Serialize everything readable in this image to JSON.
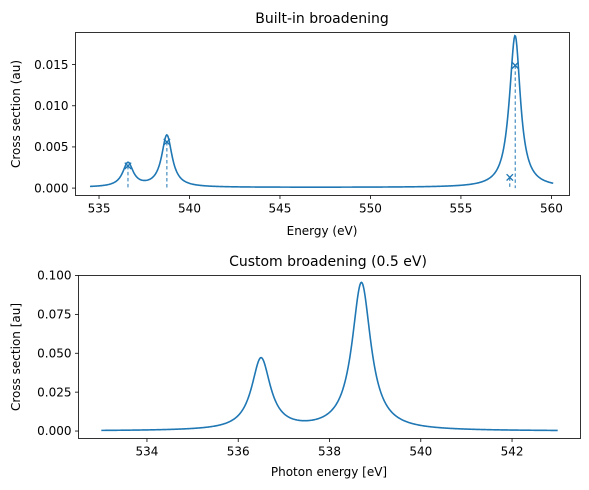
{
  "chart_data": [
    {
      "type": "line",
      "title": "Built-in broadening",
      "xlabel": "Energy (eV)",
      "ylabel": "Cross section (au)",
      "xlim": [
        533.7,
        561.0
      ],
      "ylim": [
        -0.0009,
        0.0189
      ],
      "x_ticks": [
        535,
        540,
        545,
        550,
        555,
        560
      ],
      "x_tick_labels": [
        "535",
        "540",
        "545",
        "550",
        "555",
        "560"
      ],
      "y_ticks": [
        0.0,
        0.005,
        0.01,
        0.015
      ],
      "y_tick_labels": [
        "0.000",
        "0.005",
        "0.010",
        "0.015"
      ],
      "grid": false,
      "series": [
        {
          "style": "line",
          "color": "#1f77b4",
          "curve": {
            "x_range": [
              534.5,
              560.1
            ],
            "baseline": 8e-05,
            "peaks": [
              {
                "center": 536.6,
                "height": 0.0029,
                "hwhm": 0.35
              },
              {
                "center": 538.75,
                "height": 0.0063,
                "hwhm": 0.35
              },
              {
                "center": 557.7,
                "height": 0.0013,
                "hwhm": 0.35
              },
              {
                "center": 558.0,
                "height": 0.0177,
                "hwhm": 0.35
              }
            ]
          }
        },
        {
          "style": "sticks",
          "marker": "x",
          "color": "#1f77b4",
          "x": [
            536.6,
            538.75,
            557.7,
            558.0
          ],
          "y": [
            0.0027,
            0.0056,
            0.0013,
            0.0149
          ]
        }
      ]
    },
    {
      "type": "line",
      "title": "Custom broadening (0.5 eV)",
      "xlabel": "Photon energy [eV]",
      "ylabel": "Cross section [au]",
      "xlim": [
        532.5,
        543.5
      ],
      "ylim": [
        -0.0048,
        0.1
      ],
      "x_ticks": [
        534,
        536,
        538,
        540,
        542
      ],
      "x_tick_labels": [
        "534",
        "536",
        "538",
        "540",
        "542"
      ],
      "y_ticks": [
        0.0,
        0.025,
        0.05,
        0.075,
        0.1
      ],
      "y_tick_labels": [
        "0.000",
        "0.025",
        "0.050",
        "0.075",
        "0.100"
      ],
      "grid": false,
      "series": [
        {
          "style": "line",
          "color": "#1f77b4",
          "curve": {
            "x_range": [
              533.0,
              543.0
            ],
            "baseline": 0.0,
            "peaks": [
              {
                "center": 536.5,
                "height": 0.046,
                "hwhm": 0.25
              },
              {
                "center": 538.7,
                "height": 0.095,
                "hwhm": 0.25
              }
            ]
          }
        }
      ]
    }
  ]
}
